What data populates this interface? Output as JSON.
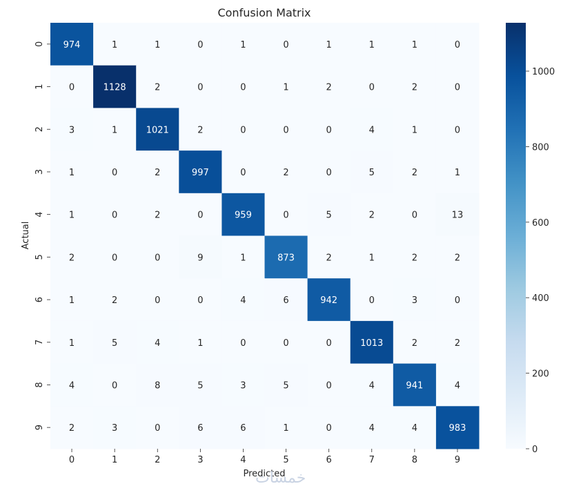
{
  "chart_data": {
    "type": "heatmap",
    "title": "Confusion Matrix",
    "xlabel": "Predicted",
    "ylabel": "Actual",
    "x_categories": [
      "0",
      "1",
      "2",
      "3",
      "4",
      "5",
      "6",
      "7",
      "8",
      "9"
    ],
    "y_categories": [
      "0",
      "1",
      "2",
      "3",
      "4",
      "5",
      "6",
      "7",
      "8",
      "9"
    ],
    "values": [
      [
        974,
        1,
        1,
        0,
        1,
        0,
        1,
        1,
        1,
        0
      ],
      [
        0,
        1128,
        2,
        0,
        0,
        1,
        2,
        0,
        2,
        0
      ],
      [
        3,
        1,
        1021,
        2,
        0,
        0,
        0,
        4,
        1,
        0
      ],
      [
        1,
        0,
        2,
        997,
        0,
        2,
        0,
        5,
        2,
        1
      ],
      [
        1,
        0,
        2,
        0,
        959,
        0,
        5,
        2,
        0,
        13
      ],
      [
        2,
        0,
        0,
        9,
        1,
        873,
        2,
        1,
        2,
        2
      ],
      [
        1,
        2,
        0,
        0,
        4,
        6,
        942,
        0,
        3,
        0
      ],
      [
        1,
        5,
        4,
        1,
        0,
        0,
        0,
        1013,
        2,
        2
      ],
      [
        4,
        0,
        8,
        5,
        3,
        5,
        0,
        4,
        941,
        4
      ],
      [
        2,
        3,
        0,
        6,
        6,
        1,
        0,
        4,
        4,
        983
      ]
    ],
    "colorscale": "Blues",
    "colorbar": {
      "min": 0,
      "max": 1128,
      "ticks": [
        0,
        200,
        400,
        600,
        800,
        1000
      ]
    },
    "annotations": "values shown in each cell",
    "grid": false
  },
  "watermark": {
    "text": "خمسات"
  }
}
